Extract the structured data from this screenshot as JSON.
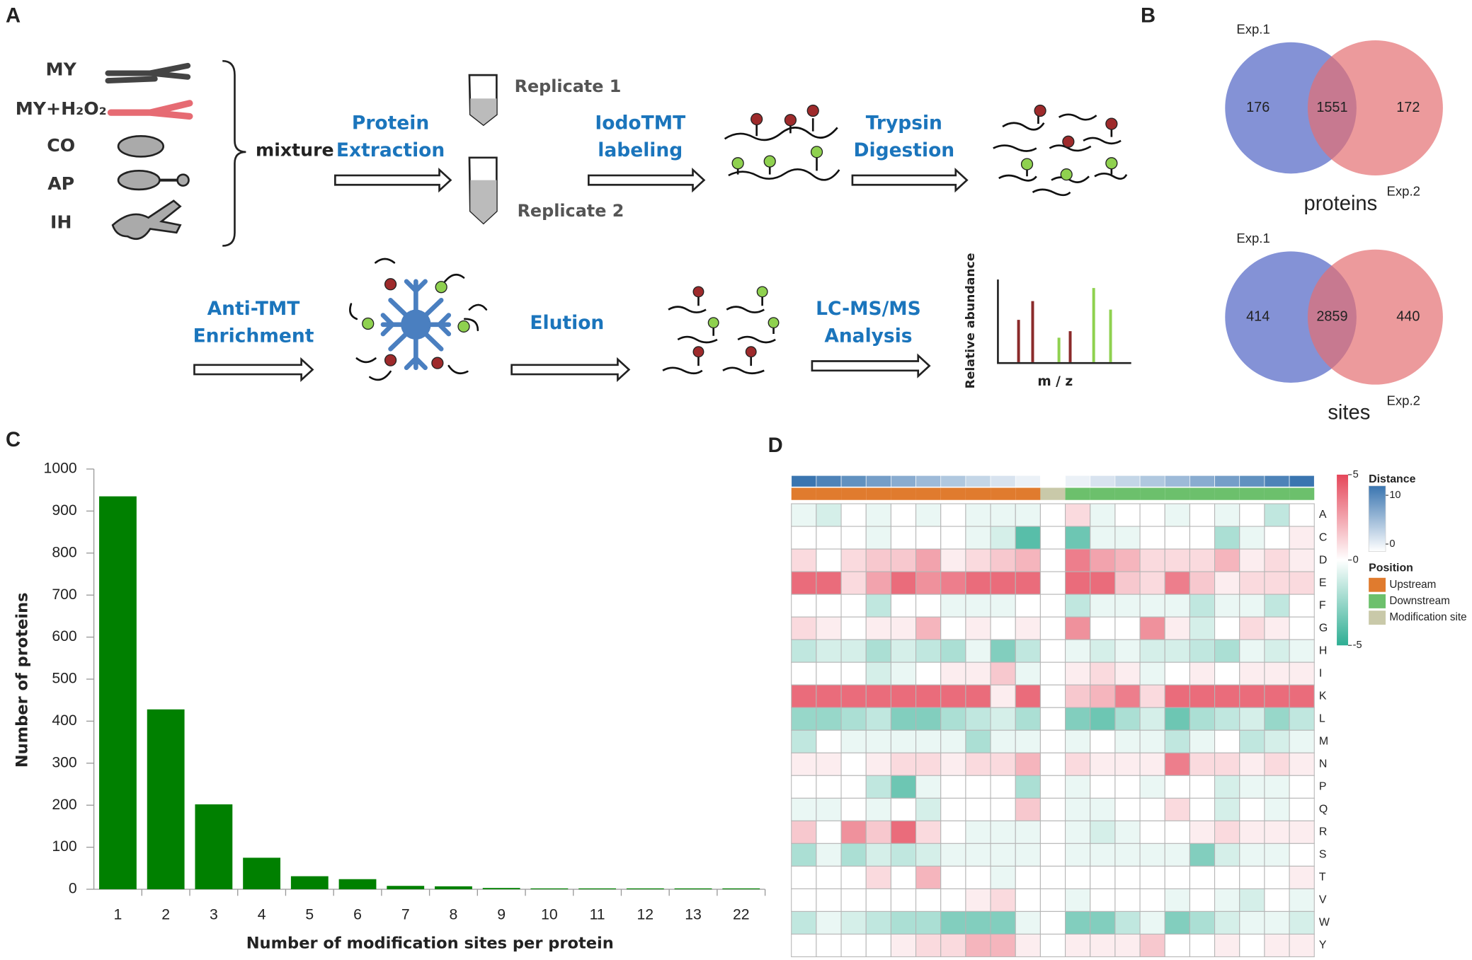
{
  "panel_labels": [
    "A",
    "B",
    "C",
    "D"
  ],
  "workflow": {
    "samples": [
      "MY",
      "MY+H₂O₂",
      "CO",
      "AP",
      "IH"
    ],
    "mixture": "mixture",
    "replicates": [
      "Replicate 1",
      "Replicate 2"
    ],
    "steps": [
      [
        "Protein",
        "Extraction"
      ],
      [
        "IodoTMT",
        "labeling"
      ],
      [
        "Trypsin",
        "Digestion"
      ],
      [
        "Anti-TMT",
        "Enrichment"
      ],
      [
        "Elution"
      ],
      [
        "LC-MS/MS",
        "Analysis"
      ]
    ],
    "spectrum_ylabel": "Relative abundance",
    "spectrum_xlabel": "m / z"
  },
  "chart_data": [
    {
      "type": "venn",
      "sets": [
        "Exp.1",
        "Exp.2"
      ],
      "values": [
        176,
        1551,
        172
      ],
      "label": "proteins",
      "colors": [
        "#6f7fcf",
        "#e46f72"
      ]
    },
    {
      "type": "venn",
      "sets": [
        "Exp.1",
        "Exp.2"
      ],
      "values": [
        414,
        2859,
        440
      ],
      "label": "sites",
      "colors": [
        "#6f7fcf",
        "#e46f72"
      ]
    },
    {
      "type": "bar",
      "xlabel": "Number of modification sites per protein",
      "ylabel": "Number of proteins",
      "categories": [
        "1",
        "2",
        "3",
        "4",
        "5",
        "6",
        "7",
        "8",
        "9",
        "10",
        "11",
        "12",
        "13",
        "22"
      ],
      "values": [
        935,
        428,
        202,
        75,
        31,
        24,
        8,
        7,
        3,
        2,
        2,
        2,
        2,
        2
      ],
      "color": "#008000",
      "ylim": [
        0,
        1000
      ],
      "yticks": [
        0,
        100,
        200,
        300,
        400,
        500,
        600,
        700,
        800,
        900,
        1000
      ]
    },
    {
      "type": "heatmap",
      "rows": [
        "A",
        "C",
        "D",
        "E",
        "F",
        "G",
        "H",
        "I",
        "K",
        "L",
        "M",
        "N",
        "P",
        "Q",
        "R",
        "S",
        "T",
        "V",
        "W",
        "Y"
      ],
      "values": [
        [
          -0.5,
          -1,
          0,
          -0.5,
          0,
          -0.5,
          0,
          -0.5,
          -0.5,
          -0.5,
          0,
          1,
          -0.5,
          0,
          0,
          -0.5,
          0,
          -0.5,
          0,
          -1.5,
          0
        ],
        [
          0,
          0,
          0,
          -0.5,
          0,
          0,
          0,
          -0.5,
          -1,
          -4,
          0,
          -3.5,
          -0.5,
          -0.5,
          0,
          0,
          0,
          -2,
          -0.5,
          0,
          0.5
        ],
        [
          1,
          0,
          1,
          1.5,
          1.5,
          2.5,
          0.5,
          1,
          1.5,
          2,
          0,
          3.5,
          2.5,
          2,
          1,
          1,
          1,
          2,
          0.5,
          1,
          0.5
        ],
        [
          4,
          4,
          1,
          2.5,
          4,
          3,
          3.5,
          4,
          4,
          4,
          0,
          4,
          4,
          1.5,
          1,
          3.5,
          1.5,
          0.5,
          1,
          1,
          1
        ],
        [
          0,
          0,
          0,
          -1.5,
          0,
          0,
          -0.5,
          -0.5,
          -0.5,
          0,
          0,
          -1.5,
          -0.5,
          -0.5,
          -0.5,
          -0.5,
          -1.5,
          -0.5,
          -0.5,
          -1.5,
          0
        ],
        [
          1,
          0.5,
          0,
          0.5,
          0.5,
          2,
          0,
          0.5,
          0,
          0.5,
          0,
          3,
          0,
          0,
          3,
          0.5,
          -1,
          0,
          1,
          0.5,
          0
        ],
        [
          -1.5,
          -1,
          -1,
          -2,
          -1,
          -1.5,
          -2,
          -0.5,
          -3,
          -1.5,
          0,
          -0.5,
          -1,
          -0.5,
          -1,
          -1,
          -1.5,
          -2,
          -0.5,
          -1,
          -0.5
        ],
        [
          0,
          0,
          0,
          -1,
          -0.5,
          0,
          0.5,
          0.5,
          1.5,
          -0.5,
          0,
          0.5,
          1,
          0.5,
          -0.5,
          0,
          0.5,
          0,
          0.5,
          0.5,
          0.5
        ],
        [
          4,
          4,
          4,
          4,
          4,
          4,
          4,
          4,
          0.5,
          4,
          0,
          1.5,
          2,
          3.5,
          1,
          4,
          4,
          4,
          4,
          4,
          4
        ],
        [
          -2.5,
          -2.5,
          -2,
          -1.5,
          -3,
          -3,
          -2,
          -1.5,
          -1,
          -2,
          0,
          -3,
          -3.5,
          -2,
          -1,
          -3.5,
          -2,
          -1.5,
          -1,
          -2.5,
          -1.5
        ],
        [
          -1.5,
          0,
          -0.5,
          -0.5,
          -0.5,
          -0.5,
          -0.5,
          -2,
          -0.5,
          -0.5,
          0,
          -0.5,
          0,
          -0.5,
          -0.5,
          -1.5,
          -0.5,
          0,
          -1.5,
          -1,
          -0.5
        ],
        [
          0.5,
          0.5,
          0,
          0.5,
          1,
          1,
          0.5,
          1,
          1,
          2,
          0,
          1,
          0.5,
          0.5,
          0.5,
          3.5,
          1,
          1,
          0.5,
          1,
          0.5
        ],
        [
          0,
          0,
          0,
          -1.5,
          -3.5,
          -0.5,
          0,
          0,
          0,
          -2,
          0,
          -0.5,
          0,
          0,
          -0.5,
          0,
          0,
          -1,
          -0.5,
          -0.5,
          0
        ],
        [
          -0.5,
          -0.5,
          0,
          -0.5,
          0,
          -1,
          0,
          0,
          0,
          1.5,
          0,
          -0.5,
          -0.5,
          0,
          0,
          1,
          0,
          -1,
          0,
          -0.5,
          0
        ],
        [
          1.5,
          0,
          3,
          1.5,
          4,
          1,
          0,
          -0.5,
          -0.5,
          -0.5,
          0,
          -0.5,
          -1,
          -0.5,
          0,
          0,
          0.5,
          1,
          0.5,
          0.5,
          0.5
        ],
        [
          -2,
          -0.5,
          -2,
          -1,
          -1.5,
          -1,
          -0.5,
          -0.5,
          -0.5,
          -0.5,
          0,
          -0.5,
          -0.5,
          -0.5,
          -0.5,
          -0.5,
          -3,
          -1,
          -0.5,
          -0.5,
          0
        ],
        [
          0,
          0,
          0,
          1,
          0,
          2,
          0,
          0,
          -0.5,
          0,
          0,
          0,
          0,
          0,
          0,
          0,
          0,
          0,
          0,
          0,
          0.5
        ],
        [
          0,
          0,
          0,
          0,
          0,
          0,
          0,
          0.5,
          1,
          0,
          0,
          -0.5,
          0,
          0,
          0,
          -0.5,
          0,
          -0.5,
          -1,
          0,
          -0.5
        ],
        [
          -1.5,
          -0.5,
          -1,
          -1.5,
          -2,
          -2,
          -3,
          -3,
          -3,
          -0.5,
          0,
          -3,
          -3,
          -1.5,
          -0.5,
          -3,
          -2,
          -1,
          -0.5,
          -0.5,
          -1
        ],
        [
          0,
          0,
          0,
          0,
          0.5,
          1,
          1,
          2,
          2,
          0.5,
          0,
          0.5,
          0.5,
          0.5,
          1.5,
          0,
          0,
          0.5,
          0,
          0.5,
          0.5
        ]
      ],
      "vlim": [
        -5,
        5
      ],
      "colorbar_ticks": [
        5,
        0,
        -5
      ],
      "colors": [
        "#2eae93",
        "#ffffff",
        "#e5475a"
      ],
      "distance": {
        "title": "Distance",
        "values": [
          10,
          9,
          8,
          7,
          6,
          5,
          4,
          3,
          2,
          1,
          0,
          1,
          2,
          3,
          4,
          5,
          6,
          7,
          8,
          9,
          10
        ],
        "lim": [
          0,
          10
        ],
        "ticks": [
          10,
          0
        ],
        "color": "#3a75b0"
      },
      "position": {
        "title": "Position",
        "legend": [
          {
            "name": "Upstream",
            "color": "#e07b2e"
          },
          {
            "name": "Downstream",
            "color": "#6cc06c"
          },
          {
            "name": "Modification site",
            "color": "#c9c9a9"
          }
        ],
        "values": [
          "Upstream",
          "Upstream",
          "Upstream",
          "Upstream",
          "Upstream",
          "Upstream",
          "Upstream",
          "Upstream",
          "Upstream",
          "Upstream",
          "Modification site",
          "Downstream",
          "Downstream",
          "Downstream",
          "Downstream",
          "Downstream",
          "Downstream",
          "Downstream",
          "Downstream",
          "Downstream",
          "Downstream"
        ]
      }
    }
  ]
}
